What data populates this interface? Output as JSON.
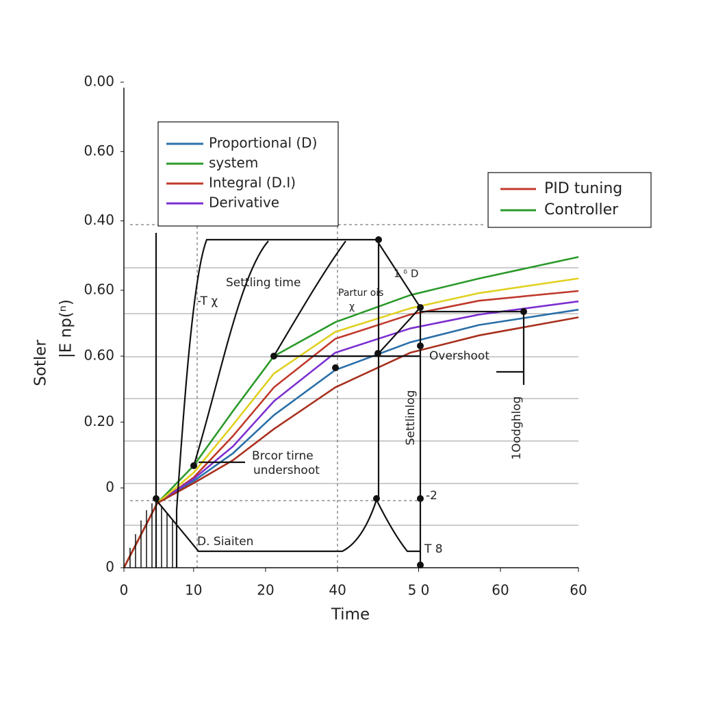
{
  "chart_data": {
    "type": "line",
    "x_label": "Time",
    "y_label": [
      "Sotler",
      "|E np(ⁿ)"
    ],
    "xlim": [
      0,
      60
    ],
    "ylim": [
      0,
      7
    ],
    "xticks": [
      0,
      {
        "value": 9.2,
        "label": "10"
      },
      {
        "value": 18.7,
        "label": "20"
      },
      {
        "value": 28.2,
        "label": "40"
      },
      {
        "value": 38.9,
        "label": "5 0"
      },
      {
        "value": 49.7,
        "label": "60"
      },
      60
    ],
    "yticks": [
      0,
      {
        "value": 1.15,
        "label": "0"
      },
      {
        "value": 2.1,
        "label": "0.20"
      },
      {
        "value": 3.05,
        "label": "0.60"
      },
      {
        "value": 4,
        "label": "0.60"
      },
      {
        "value": 5,
        "label": "0.40"
      },
      {
        "value": 6,
        "label": "0.60"
      },
      {
        "value": 7,
        "label": "0.00"
      }
    ],
    "x": [
      0,
      4.4,
      9.2,
      14.4,
      19.8,
      27.9,
      37.8,
      46.9,
      60
    ],
    "series": [
      {
        "name": "Proportional (D)",
        "color": "#2a6fa8",
        "values": [
          0,
          0.93,
          1.25,
          1.65,
          2.2,
          2.85,
          3.25,
          3.5,
          3.72
        ]
      },
      {
        "name": "system",
        "color": "#2a9a2a",
        "values": [
          0,
          0.93,
          1.47,
          2.26,
          3.05,
          3.54,
          3.93,
          4.17,
          4.48
        ]
      },
      {
        "name": "Integral (D.I)",
        "color": "#c0392b",
        "values": [
          0,
          0.93,
          1.3,
          1.9,
          2.6,
          3.3,
          3.65,
          3.85,
          3.99
        ]
      },
      {
        "name": "Derivative",
        "color": "#7b2fd0",
        "values": [
          0,
          0.93,
          1.28,
          1.75,
          2.4,
          3.1,
          3.45,
          3.65,
          3.84
        ]
      },
      {
        "color": "#e0d020",
        "values": [
          0,
          0.93,
          1.37,
          2.06,
          2.8,
          3.4,
          3.74,
          3.96,
          4.17
        ]
      },
      {
        "color": "#a8301e",
        "values": [
          0,
          0.93,
          1.22,
          1.55,
          2.0,
          2.6,
          3.1,
          3.35,
          3.61
        ]
      }
    ],
    "legend2": [
      {
        "name": "PID tuning",
        "color": "#c0392b"
      },
      {
        "name": "Controller",
        "color": "#2a9a2a"
      }
    ],
    "annotations": [
      "Settling time",
      "-T χ",
      "Partur ois",
      "χ",
      "1 ᵟ D",
      "Overshoot",
      "Settlinlog",
      "1Oodghlog",
      "Brcor tirne",
      "undershoot",
      "D. Siaiten",
      "-2",
      "T 8"
    ]
  }
}
